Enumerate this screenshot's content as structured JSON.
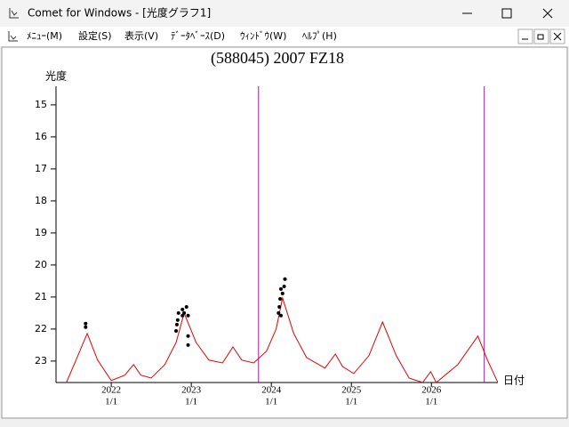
{
  "window": {
    "title": "Comet for Windows - [光度グラフ1]"
  },
  "menu": [
    "ﾒﾆｭｰ(M)",
    "設定(S)",
    "表示(V)",
    "ﾃﾞｰﾀﾍﾞｰｽ(D)",
    "ｳｨﾝﾄﾞｳ(W)",
    "ﾍﾙﾌﾟ(H)"
  ],
  "chart_data": {
    "type": "line",
    "title": "(588045) 2007 FZ18",
    "y_label": "光度",
    "x_label": "日付",
    "xlim": [
      2021.31,
      2026.83
    ],
    "ylim": [
      23.67,
      14.42
    ],
    "yticks": [
      15,
      16,
      17,
      18,
      19,
      20,
      21,
      22,
      23
    ],
    "xticks": [
      2022,
      2023,
      2024,
      2025,
      2026
    ],
    "xtick_sublabel": "1/1",
    "markers": {
      "color": "#c000c0",
      "x": [
        2023.84,
        2026.66
      ]
    },
    "series": [
      {
        "type": "line",
        "color": "#e00000",
        "x": [
          2021.44,
          2021.56,
          2021.7,
          2021.83,
          2022.0,
          2022.17,
          2022.28,
          2022.37,
          2022.5,
          2022.67,
          2022.81,
          2022.91,
          2023.06,
          2023.22,
          2023.39,
          2023.52,
          2023.63,
          2023.78,
          2023.94,
          2024.06,
          2024.14,
          2024.28,
          2024.44,
          2024.67,
          2024.8,
          2024.89,
          2025.03,
          2025.22,
          2025.39,
          2025.56,
          2025.72,
          2025.89,
          2025.99,
          2026.06,
          2026.33,
          2026.58,
          2026.7,
          2026.83
        ],
        "values": [
          23.67,
          22.97,
          22.14,
          22.97,
          23.61,
          23.44,
          23.11,
          23.44,
          23.53,
          23.11,
          22.42,
          21.5,
          22.42,
          22.97,
          23.06,
          22.56,
          22.97,
          23.06,
          22.69,
          22.0,
          21.03,
          22.14,
          22.89,
          23.22,
          22.78,
          23.17,
          23.39,
          22.83,
          21.78,
          22.83,
          23.53,
          23.67,
          23.33,
          23.67,
          23.11,
          22.22,
          22.97,
          23.67
        ]
      },
      {
        "type": "scatter",
        "color": "#000000",
        "x": [
          2021.68,
          2021.68,
          2022.81,
          2022.82,
          2022.83,
          2022.84,
          2022.89,
          2022.89,
          2022.91,
          2022.94,
          2022.96,
          2022.96,
          2022.96,
          2024.09,
          2024.1,
          2024.11,
          2024.12,
          2024.12,
          2024.14,
          2024.16,
          2024.17
        ],
        "values": [
          21.83,
          21.94,
          22.06,
          21.86,
          21.72,
          21.5,
          21.58,
          21.39,
          21.5,
          21.31,
          21.58,
          22.22,
          22.5,
          21.5,
          21.31,
          21.06,
          20.75,
          21.58,
          20.89,
          20.67,
          20.44
        ]
      }
    ]
  }
}
